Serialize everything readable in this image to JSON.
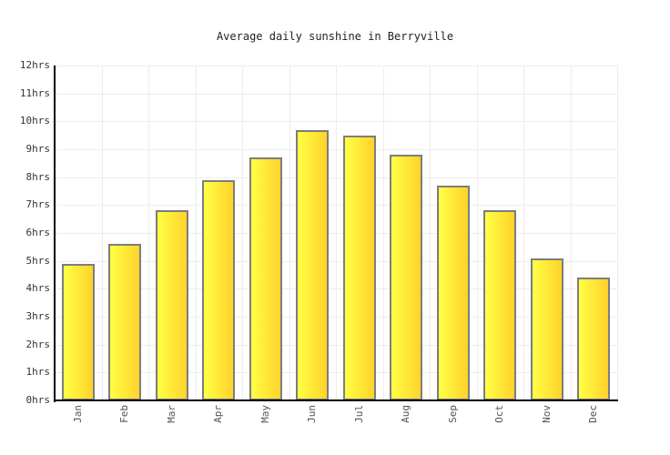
{
  "title": "Average daily sunshine in Berryville",
  "chart_data": {
    "type": "bar",
    "title": "Average daily sunshine in Berryville",
    "categories": [
      "Jan",
      "Feb",
      "Mar",
      "Apr",
      "May",
      "Jun",
      "Jul",
      "Aug",
      "Sep",
      "Oct",
      "Nov",
      "Dec"
    ],
    "values": [
      4.9,
      5.6,
      6.8,
      7.9,
      8.7,
      9.7,
      9.5,
      8.8,
      7.7,
      6.8,
      5.1,
      4.4
    ],
    "unit": "hrs",
    "xlabel": "",
    "ylabel": "",
    "ylim": [
      0,
      12
    ],
    "y_ticks": [
      "12hrs",
      "11hrs",
      "10hrs",
      "9hrs",
      "8hrs",
      "7hrs",
      "6hrs",
      "5hrs",
      "4hrs",
      "3hrs",
      "2hrs",
      "1hrs",
      "0hrs"
    ],
    "grid": true,
    "legend": false,
    "colors": {
      "bar_gradient_left": "#FFFF45",
      "bar_gradient_right": "#FFD22C",
      "bar_border": "#7D7D7D",
      "axis": "#000000",
      "gridline": "#EDEDED",
      "y_tick_text": "#333333",
      "x_tick_text": "#555555",
      "title_text": "#222222",
      "background": "#FFFFFF"
    }
  }
}
